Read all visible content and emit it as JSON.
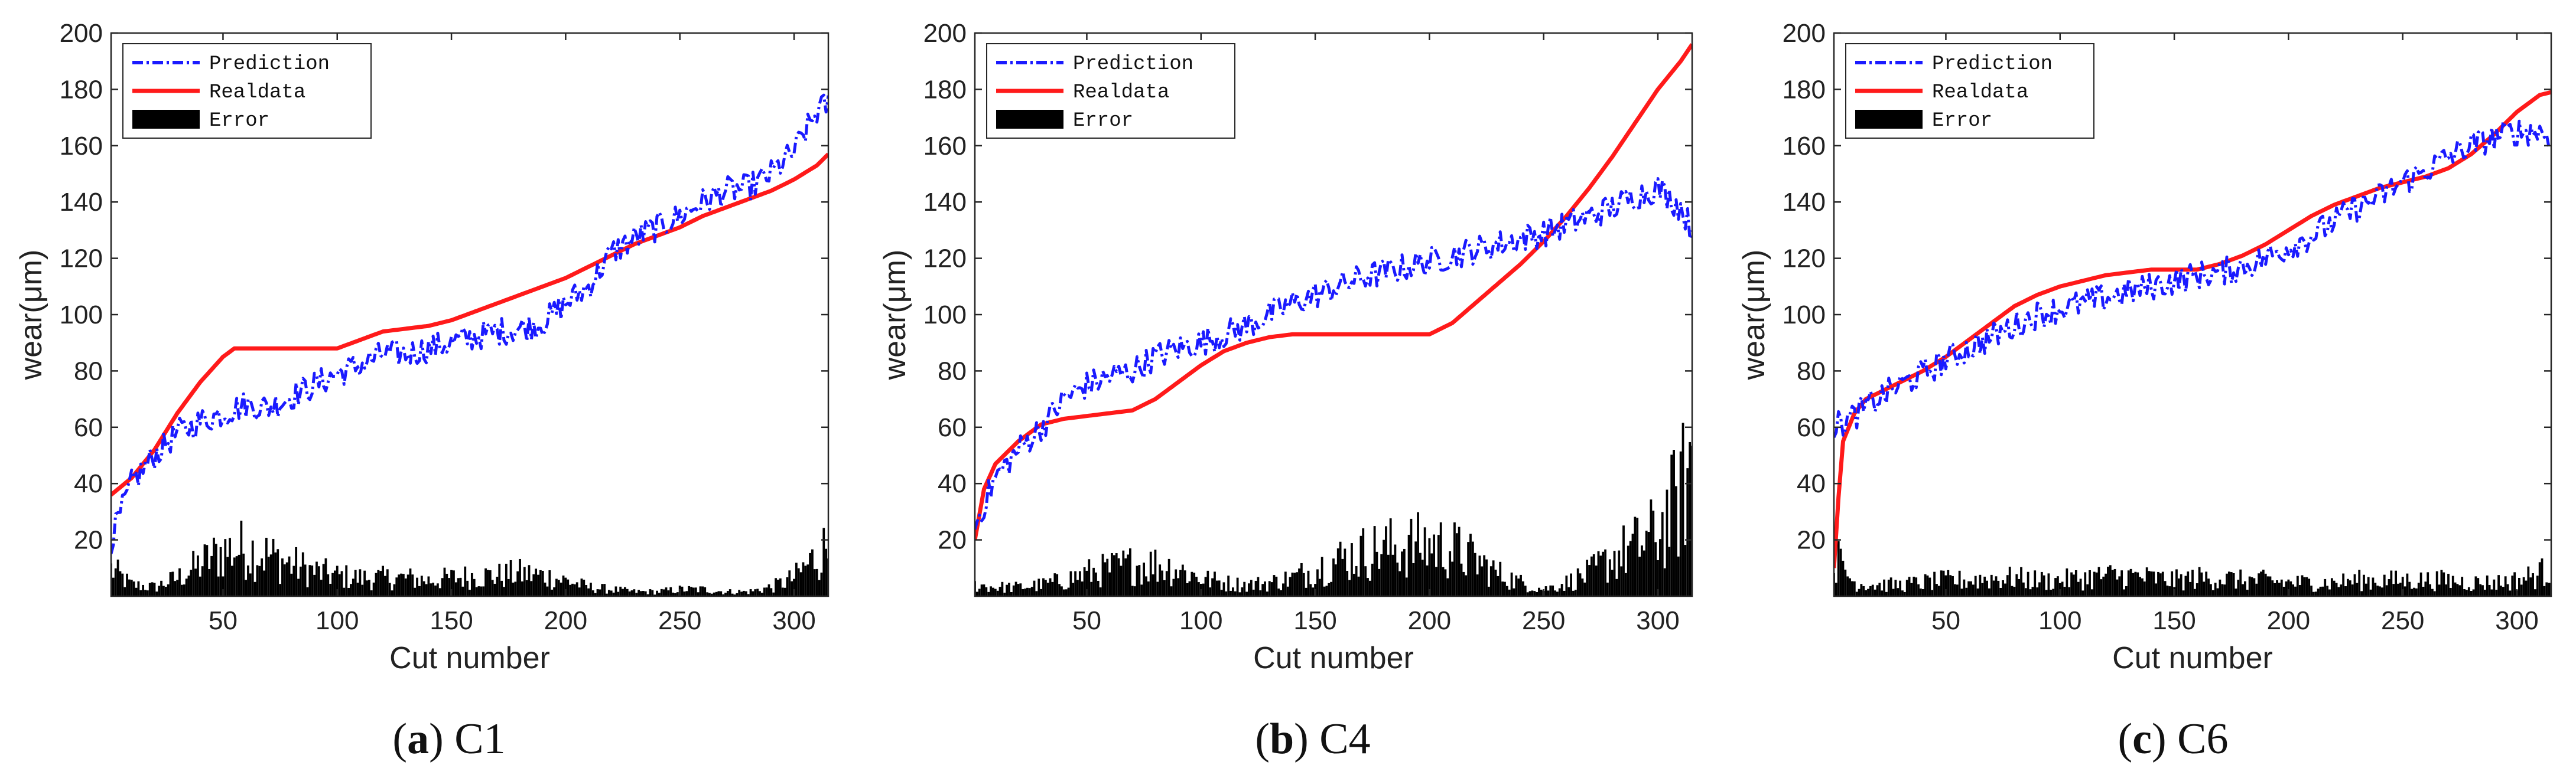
{
  "figure": {
    "panels": [
      "(a) C1",
      "(b) C4",
      "(c) C6"
    ]
  },
  "chart_data": [
    {
      "type": "line",
      "title": "",
      "caption_label": "a",
      "caption_text": "C1",
      "xlabel": "Cut number",
      "ylabel": "wear(μm)",
      "xlim": [
        1,
        315
      ],
      "ylim": [
        0,
        200
      ],
      "xticks": [
        50,
        100,
        150,
        200,
        250,
        300
      ],
      "yticks": [
        20,
        40,
        60,
        80,
        100,
        120,
        140,
        160,
        180,
        200
      ],
      "legend": [
        "Prediction",
        "Realdata",
        "Error"
      ],
      "legend_position": "top-left",
      "colors": {
        "prediction": "#1a1aff",
        "realdata": "#ff1a1a",
        "error": "#000000"
      },
      "series": [
        {
          "name": "Prediction",
          "style": "dash-dot",
          "x": [
            1,
            10,
            20,
            30,
            40,
            50,
            60,
            70,
            80,
            90,
            100,
            110,
            120,
            130,
            140,
            150,
            160,
            170,
            180,
            190,
            200,
            210,
            220,
            230,
            240,
            250,
            260,
            270,
            280,
            290,
            300,
            310,
            315
          ],
          "y": [
            20,
            40,
            50,
            58,
            62,
            65,
            68,
            67,
            71,
            75,
            79,
            82,
            86,
            86,
            88,
            90,
            92,
            94,
            95,
            97,
            104,
            110,
            122,
            127,
            131,
            135,
            140,
            144,
            145,
            150,
            158,
            172,
            175
          ]
        },
        {
          "name": "Realdata",
          "style": "solid",
          "x": [
            1,
            10,
            20,
            30,
            40,
            50,
            55,
            60,
            80,
            100,
            110,
            120,
            130,
            140,
            150,
            160,
            170,
            180,
            190,
            200,
            210,
            220,
            230,
            240,
            250,
            260,
            270,
            280,
            290,
            300,
            310,
            315
          ],
          "y": [
            36,
            42,
            52,
            65,
            76,
            85,
            88,
            88,
            88,
            88,
            91,
            94,
            95,
            96,
            98,
            101,
            104,
            107,
            110,
            113,
            117,
            121,
            125,
            128,
            131,
            135,
            138,
            141,
            144,
            148,
            153,
            157
          ]
        },
        {
          "name": "Error",
          "style": "bar",
          "x": [
            1,
            10,
            20,
            30,
            40,
            50,
            60,
            70,
            80,
            90,
            100,
            110,
            120,
            130,
            140,
            150,
            160,
            170,
            180,
            190,
            200,
            210,
            220,
            230,
            240,
            250,
            260,
            270,
            280,
            290,
            300,
            310,
            315
          ],
          "y": [
            12,
            5,
            4,
            8,
            14,
            20,
            21,
            18,
            14,
            11,
            9,
            8,
            8,
            8,
            7,
            8,
            9,
            9,
            10,
            9,
            7,
            4,
            3,
            2,
            2,
            3,
            3,
            2,
            2,
            4,
            8,
            18,
            22
          ]
        }
      ]
    },
    {
      "type": "line",
      "title": "",
      "caption_label": "b",
      "caption_text": "C4",
      "xlabel": "Cut number",
      "ylabel": "wear(μm)",
      "xlim": [
        1,
        315
      ],
      "ylim": [
        0,
        200
      ],
      "xticks": [
        50,
        100,
        150,
        200,
        250,
        300
      ],
      "yticks": [
        20,
        40,
        60,
        80,
        100,
        120,
        140,
        160,
        180,
        200
      ],
      "legend": [
        "Prediction",
        "Realdata",
        "Error"
      ],
      "legend_position": "top-left",
      "colors": {
        "prediction": "#1a1aff",
        "realdata": "#ff1a1a",
        "error": "#000000"
      },
      "series": [
        {
          "name": "Prediction",
          "style": "dash-dot",
          "x": [
            1,
            10,
            20,
            30,
            40,
            50,
            60,
            70,
            80,
            90,
            100,
            110,
            120,
            130,
            140,
            150,
            160,
            170,
            180,
            190,
            200,
            210,
            220,
            230,
            240,
            250,
            260,
            270,
            280,
            290,
            300,
            310,
            315
          ],
          "y": [
            25,
            42,
            52,
            60,
            70,
            75,
            78,
            80,
            85,
            88,
            90,
            93,
            96,
            100,
            104,
            107,
            110,
            113,
            115,
            117,
            119,
            121,
            123,
            125,
            127,
            129,
            132,
            135,
            138,
            142,
            145,
            138,
            130
          ]
        },
        {
          "name": "Realdata",
          "style": "solid",
          "x": [
            1,
            5,
            10,
            20,
            30,
            40,
            50,
            60,
            70,
            80,
            90,
            100,
            110,
            120,
            130,
            140,
            150,
            160,
            170,
            180,
            190,
            200,
            210,
            220,
            230,
            240,
            250,
            260,
            270,
            280,
            290,
            300,
            310,
            315
          ],
          "y": [
            20,
            38,
            47,
            55,
            61,
            63,
            64,
            65,
            66,
            70,
            76,
            82,
            87,
            90,
            92,
            93,
            93,
            93,
            93,
            93,
            93,
            93,
            97,
            104,
            111,
            118,
            126,
            135,
            145,
            156,
            168,
            180,
            190,
            196
          ]
        },
        {
          "name": "Error",
          "style": "bar",
          "x": [
            1,
            10,
            20,
            30,
            40,
            50,
            60,
            70,
            80,
            90,
            100,
            110,
            120,
            130,
            140,
            150,
            160,
            170,
            180,
            190,
            200,
            210,
            220,
            230,
            240,
            250,
            260,
            270,
            280,
            290,
            300,
            310,
            315
          ],
          "y": [
            5,
            4,
            4,
            5,
            7,
            10,
            12,
            14,
            14,
            12,
            8,
            6,
            5,
            6,
            8,
            12,
            16,
            19,
            21,
            22,
            23,
            21,
            16,
            10,
            6,
            3,
            6,
            10,
            17,
            22,
            28,
            45,
            60
          ]
        }
      ]
    },
    {
      "type": "line",
      "title": "",
      "caption_label": "c",
      "caption_text": "C6",
      "xlabel": "Cut number",
      "ylabel": "wear(μm)",
      "xlim": [
        1,
        315
      ],
      "ylim": [
        0,
        200
      ],
      "xticks": [
        50,
        100,
        150,
        200,
        250,
        300
      ],
      "yticks": [
        20,
        40,
        60,
        80,
        100,
        120,
        140,
        160,
        180,
        200
      ],
      "legend": [
        "Prediction",
        "Realdata",
        "Error"
      ],
      "legend_position": "top-left",
      "colors": {
        "prediction": "#1a1aff",
        "realdata": "#ff1a1a",
        "error": "#000000"
      },
      "series": [
        {
          "name": "Prediction",
          "style": "dash-dot",
          "x": [
            1,
            10,
            20,
            30,
            40,
            50,
            60,
            70,
            80,
            90,
            100,
            110,
            120,
            130,
            140,
            150,
            160,
            170,
            180,
            190,
            200,
            210,
            220,
            230,
            240,
            250,
            260,
            270,
            280,
            290,
            300,
            310,
            315
          ],
          "y": [
            60,
            64,
            70,
            75,
            79,
            84,
            88,
            92,
            96,
            100,
            102,
            104,
            106,
            108,
            110,
            112,
            114,
            115,
            117,
            120,
            124,
            128,
            133,
            138,
            142,
            147,
            151,
            156,
            160,
            163,
            165,
            165,
            163
          ]
        },
        {
          "name": "Realdata",
          "style": "solid",
          "x": [
            1,
            3,
            5,
            10,
            15,
            20,
            30,
            40,
            50,
            60,
            70,
            80,
            90,
            100,
            110,
            120,
            130,
            140,
            150,
            160,
            170,
            180,
            190,
            200,
            210,
            220,
            230,
            240,
            250,
            260,
            270,
            280,
            290,
            300,
            310,
            315
          ],
          "y": [
            10,
            35,
            55,
            65,
            70,
            72,
            76,
            80,
            85,
            91,
            97,
            103,
            107,
            110,
            112,
            114,
            115,
            116,
            116,
            116,
            118,
            121,
            125,
            130,
            135,
            139,
            142,
            145,
            147,
            149,
            152,
            157,
            164,
            172,
            178,
            179
          ]
        },
        {
          "name": "Error",
          "style": "bar",
          "x": [
            1,
            10,
            20,
            30,
            40,
            50,
            60,
            70,
            80,
            90,
            100,
            110,
            120,
            130,
            140,
            150,
            160,
            170,
            180,
            190,
            200,
            210,
            220,
            230,
            240,
            250,
            260,
            270,
            280,
            290,
            300,
            310,
            315
          ],
          "y": [
            18,
            6,
            5,
            5,
            6,
            7,
            7,
            8,
            8,
            7,
            7,
            8,
            9,
            9,
            8,
            7,
            8,
            8,
            7,
            7,
            6,
            6,
            6,
            7,
            7,
            7,
            7,
            7,
            6,
            6,
            7,
            10,
            12
          ]
        }
      ]
    }
  ]
}
